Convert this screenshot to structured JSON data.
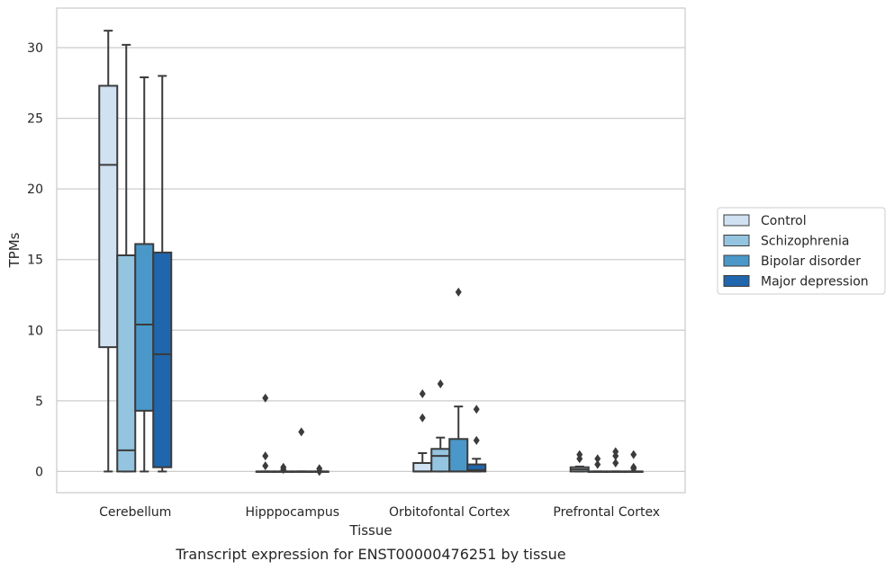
{
  "chart_data": {
    "type": "box",
    "caption": "Transcript expression for ENST00000476251 by tissue",
    "xlabel": "Tissue",
    "ylabel": "TPMs",
    "ylim": [
      -1.5,
      32.8
    ],
    "yticks": [
      0,
      5,
      10,
      15,
      20,
      25,
      30
    ],
    "grid": true,
    "legend_position": "right",
    "categories": [
      "Cerebellum",
      "Hipppocampus",
      "Orbitofontal Cortex",
      "Prefrontal Cortex"
    ],
    "series": [
      {
        "name": "Control",
        "color": "#d0e1f2",
        "boxes": [
          {
            "whislo": 0,
            "q1": 8.8,
            "med": 21.7,
            "q3": 27.3,
            "whishi": 31.2,
            "fliers": []
          },
          {
            "whislo": 0,
            "q1": 0,
            "med": 0,
            "q3": 0,
            "whishi": 0,
            "fliers": [
              5.2,
              1.1,
              0.4
            ]
          },
          {
            "whislo": 0,
            "q1": 0,
            "med": 0,
            "q3": 0.6,
            "whishi": 1.3,
            "fliers": [
              5.5,
              3.8
            ]
          },
          {
            "whislo": 0,
            "q1": 0,
            "med": 0.15,
            "q3": 0.3,
            "whishi": 0.35,
            "fliers": [
              1.2,
              0.9
            ]
          }
        ]
      },
      {
        "name": "Schizophrenia",
        "color": "#94c4df",
        "boxes": [
          {
            "whislo": 0,
            "q1": 0,
            "med": 1.5,
            "q3": 15.3,
            "whishi": 30.2,
            "fliers": []
          },
          {
            "whislo": 0,
            "q1": 0,
            "med": 0,
            "q3": 0,
            "whishi": 0,
            "fliers": [
              0.3,
              0.15
            ]
          },
          {
            "whislo": 0,
            "q1": 0,
            "med": 1.1,
            "q3": 1.6,
            "whishi": 2.4,
            "fliers": [
              6.2
            ]
          },
          {
            "whislo": 0,
            "q1": 0,
            "med": 0,
            "q3": 0,
            "whishi": 0,
            "fliers": [
              0.9,
              0.5
            ]
          }
        ]
      },
      {
        "name": "Bipolar disorder",
        "color": "#4a98c9",
        "boxes": [
          {
            "whislo": 0,
            "q1": 4.3,
            "med": 10.4,
            "q3": 16.1,
            "whishi": 27.9,
            "fliers": []
          },
          {
            "whislo": 0,
            "q1": 0,
            "med": 0,
            "q3": 0,
            "whishi": 0,
            "fliers": [
              2.8
            ]
          },
          {
            "whislo": 0,
            "q1": 0,
            "med": 0,
            "q3": 2.3,
            "whishi": 4.6,
            "fliers": [
              12.7
            ]
          },
          {
            "whislo": 0,
            "q1": 0,
            "med": 0,
            "q3": 0,
            "whishi": 0,
            "fliers": [
              1.4,
              1.1,
              0.6
            ]
          }
        ]
      },
      {
        "name": "Major depression",
        "color": "#2066ac",
        "boxes": [
          {
            "whislo": 0,
            "q1": 0.3,
            "med": 8.3,
            "q3": 15.5,
            "whishi": 28.0,
            "fliers": []
          },
          {
            "whislo": 0,
            "q1": 0,
            "med": 0,
            "q3": 0,
            "whishi": 0,
            "fliers": [
              0.2,
              0.0
            ]
          },
          {
            "whislo": 0,
            "q1": 0,
            "med": 0.1,
            "q3": 0.5,
            "whishi": 0.9,
            "fliers": [
              4.4,
              2.2
            ]
          },
          {
            "whislo": 0,
            "q1": 0,
            "med": 0,
            "q3": 0,
            "whishi": 0,
            "fliers": [
              1.2,
              0.3,
              0.2
            ]
          }
        ]
      }
    ]
  }
}
